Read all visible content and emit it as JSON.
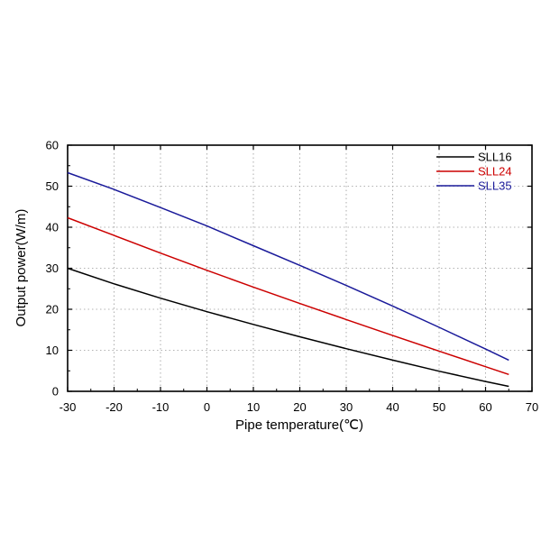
{
  "chart_data": {
    "type": "line",
    "xlabel": "Pipe temperature(℃)",
    "ylabel": "Output power(W/m)",
    "xlim": [
      -30,
      70
    ],
    "ylim": [
      0,
      60
    ],
    "xticks": [
      -30,
      -20,
      -10,
      0,
      10,
      20,
      30,
      40,
      50,
      60,
      70
    ],
    "yticks": [
      0,
      10,
      20,
      30,
      40,
      50,
      60
    ],
    "xtick_labels": [
      "-30",
      "-20",
      "-10",
      "0",
      "10",
      "20",
      "30",
      "40",
      "50",
      "60",
      "70"
    ],
    "ytick_labels": [
      "0",
      "10",
      "20",
      "30",
      "40",
      "50",
      "60"
    ],
    "grid": "dotted",
    "legend_position": "top-right",
    "series": [
      {
        "name": "SLL16",
        "color": "#000000",
        "x": [
          -30,
          -20,
          -10,
          0,
          10,
          20,
          30,
          40,
          50,
          60,
          65
        ],
        "y": [
          30,
          26.2,
          22.7,
          19.4,
          16.3,
          13.3,
          10.4,
          7.6,
          4.9,
          2.4,
          1.2
        ]
      },
      {
        "name": "SLL24",
        "color": "#cc0000",
        "x": [
          -30,
          -20,
          -10,
          0,
          10,
          20,
          30,
          40,
          50,
          60,
          65
        ],
        "y": [
          42.3,
          38.0,
          33.7,
          29.5,
          25.4,
          21.4,
          17.5,
          13.6,
          9.8,
          6.0,
          4.1
        ]
      },
      {
        "name": "SLL35",
        "color": "#1a1a9a",
        "x": [
          -30,
          -20,
          -10,
          0,
          10,
          20,
          30,
          40,
          50,
          60,
          65
        ],
        "y": [
          53.3,
          49.2,
          44.8,
          40.3,
          35.5,
          30.7,
          25.8,
          20.8,
          15.6,
          10.3,
          7.6
        ]
      }
    ]
  }
}
